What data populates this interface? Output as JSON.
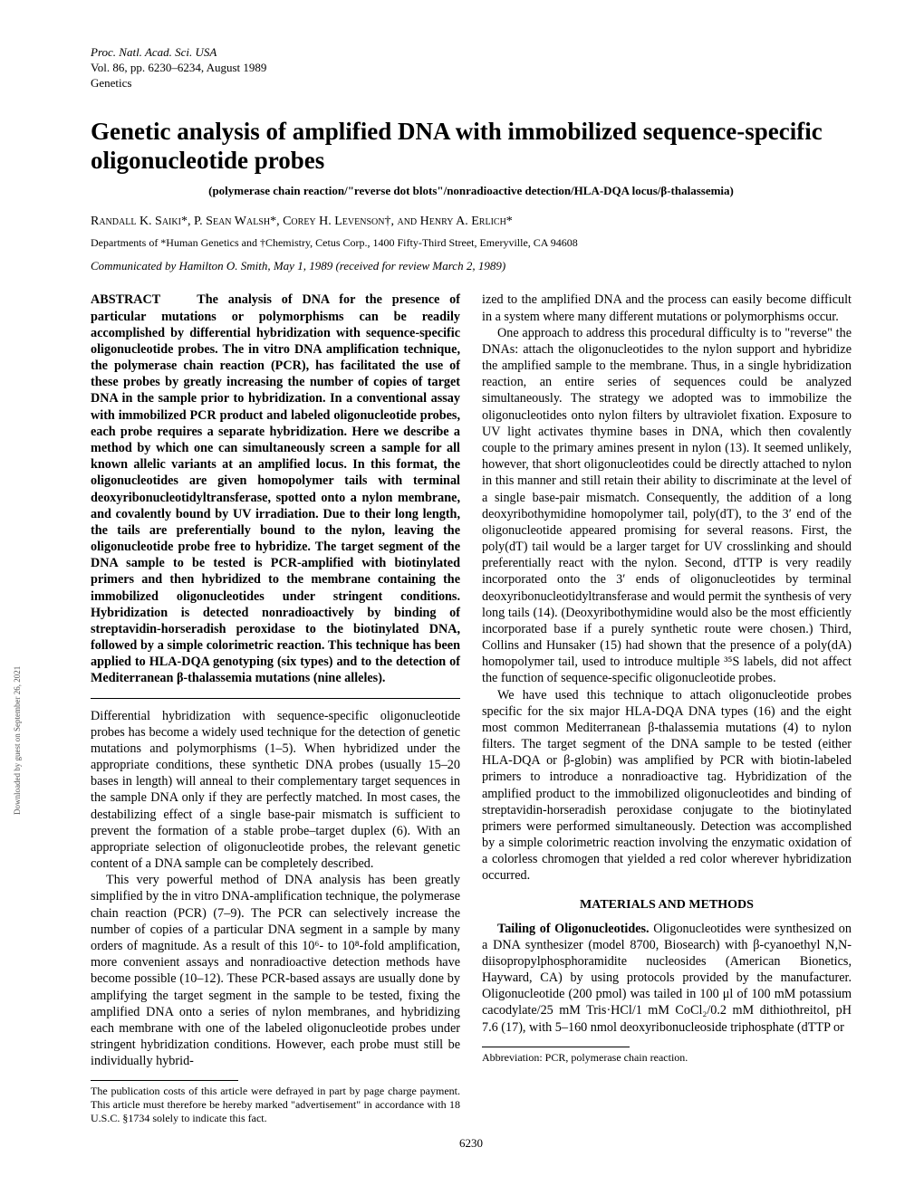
{
  "header": {
    "line1": "Proc. Natl. Acad. Sci. USA",
    "line2": "Vol. 86, pp. 6230–6234, August 1989",
    "line3": "Genetics"
  },
  "title": "Genetic analysis of amplified DNA with immobilized sequence-specific oligonucleotide probes",
  "subtitle": "(polymerase chain reaction/\"reverse dot blots\"/nonradioactive detection/HLA-DQA locus/β-thalassemia)",
  "authors": "Randall K. Saiki*, P. Sean Walsh*, Corey H. Levenson†, and Henry A. Erlich*",
  "affiliation": "Departments of *Human Genetics and †Chemistry, Cetus Corp., 1400 Fifty-Third Street, Emeryville, CA 94608",
  "communicated": "Communicated by Hamilton O. Smith, May 1, 1989 (received for review March 2, 1989)",
  "abstract_label": "ABSTRACT",
  "abstract": "The analysis of DNA for the presence of particular mutations or polymorphisms can be readily accomplished by differential hybridization with sequence-specific oligonucleotide probes. The in vitro DNA amplification technique, the polymerase chain reaction (PCR), has facilitated the use of these probes by greatly increasing the number of copies of target DNA in the sample prior to hybridization. In a conventional assay with immobilized PCR product and labeled oligonucleotide probes, each probe requires a separate hybridization. Here we describe a method by which one can simultaneously screen a sample for all known allelic variants at an amplified locus. In this format, the oligonucleotides are given homopolymer tails with terminal deoxyribonucleotidyltransferase, spotted onto a nylon membrane, and covalently bound by UV irradiation. Due to their long length, the tails are preferentially bound to the nylon, leaving the oligonucleotide probe free to hybridize. The target segment of the DNA sample to be tested is PCR-amplified with biotinylated primers and then hybridized to the membrane containing the immobilized oligonucleotides under stringent conditions. Hybridization is detected nonradioactively by binding of streptavidin-horseradish peroxidase to the biotinylated DNA, followed by a simple colorimetric reaction. This technique has been applied to HLA-DQA genotyping (six types) and to the detection of Mediterranean β-thalassemia mutations (nine alleles).",
  "left": {
    "p1": "Differential hybridization with sequence-specific oligonucleotide probes has become a widely used technique for the detection of genetic mutations and polymorphisms (1–5). When hybridized under the appropriate conditions, these synthetic DNA probes (usually 15–20 bases in length) will anneal to their complementary target sequences in the sample DNA only if they are perfectly matched. In most cases, the destabilizing effect of a single base-pair mismatch is sufficient to prevent the formation of a stable probe–target duplex (6). With an appropriate selection of oligonucleotide probes, the relevant genetic content of a DNA sample can be completely described.",
    "p2": "This very powerful method of DNA analysis has been greatly simplified by the in vitro DNA-amplification technique, the polymerase chain reaction (PCR) (7–9). The PCR can selectively increase the number of copies of a particular DNA segment in a sample by many orders of magnitude. As a result of this 10⁶- to 10⁸-fold amplification, more convenient assays and nonradioactive detection methods have become possible (10–12). These PCR-based assays are usually done by amplifying the target segment in the sample to be tested, fixing the amplified DNA onto a series of nylon membranes, and hybridizing each membrane with one of the labeled oligonucleotide probes under stringent hybridization conditions. However, each probe must still be individually hybrid-"
  },
  "left_footnote": "The publication costs of this article were defrayed in part by page charge payment. This article must therefore be hereby marked \"advertisement\" in accordance with 18 U.S.C. §1734 solely to indicate this fact.",
  "right": {
    "p1": "ized to the amplified DNA and the process can easily become difficult in a system where many different mutations or polymorphisms occur.",
    "p2": "One approach to address this procedural difficulty is to \"reverse\" the DNAs: attach the oligonucleotides to the nylon support and hybridize the amplified sample to the membrane. Thus, in a single hybridization reaction, an entire series of sequences could be analyzed simultaneously. The strategy we adopted was to immobilize the oligonucleotides onto nylon filters by ultraviolet fixation. Exposure to UV light activates thymine bases in DNA, which then covalently couple to the primary amines present in nylon (13). It seemed unlikely, however, that short oligonucleotides could be directly attached to nylon in this manner and still retain their ability to discriminate at the level of a single base-pair mismatch. Consequently, the addition of a long deoxyribothymidine homopolymer tail, poly(dT), to the 3′ end of the oligonucleotide appeared promising for several reasons. First, the poly(dT) tail would be a larger target for UV crosslinking and should preferentially react with the nylon. Second, dTTP is very readily incorporated onto the 3′ ends of oligonucleotides by terminal deoxyribonucleotidyltransferase and would permit the synthesis of very long tails (14). (Deoxyribothymidine would also be the most efficiently incorporated base if a purely synthetic route were chosen.) Third, Collins and Hunsaker (15) had shown that the presence of a poly(dA) homopolymer tail, used to introduce multiple ³⁵S labels, did not affect the function of sequence-specific oligonucleotide probes.",
    "p3": "We have used this technique to attach oligonucleotide probes specific for the six major HLA-DQA DNA types (16) and the eight most common Mediterranean β-thalassemia mutations (4) to nylon filters. The target segment of the DNA sample to be tested (either HLA-DQA or β-globin) was amplified by PCR with biotin-labeled primers to introduce a nonradioactive tag. Hybridization of the amplified product to the immobilized oligonucleotides and binding of streptavidin-horseradish peroxidase conjugate to the biotinylated primers were performed simultaneously. Detection was accomplished by a simple colorimetric reaction involving the enzymatic oxidation of a colorless chromogen that yielded a red color wherever hybridization occurred."
  },
  "materials_head": "MATERIALS AND METHODS",
  "materials": {
    "runhead": "Tailing of Oligonucleotides.",
    "body": " Oligonucleotides were synthesized on a DNA synthesizer (model 8700, Biosearch) with β-cyanoethyl N,N-diisopropylphosphoramidite nucleosides (American Bionetics, Hayward, CA) by using protocols provided by the manufacturer. Oligonucleotide (200 pmol) was tailed in 100 μl of 100 mM potassium cacodylate/25 mM Tris·HCl/1 mM CoCl₂/0.2 mM dithiothreitol, pH 7.6 (17), with 5–160 nmol deoxyribonucleoside triphosphate (dTTP or"
  },
  "right_footnote": "Abbreviation: PCR, polymerase chain reaction.",
  "pagenum": "6230",
  "sidetext": "Downloaded by guest on September 26, 2021"
}
